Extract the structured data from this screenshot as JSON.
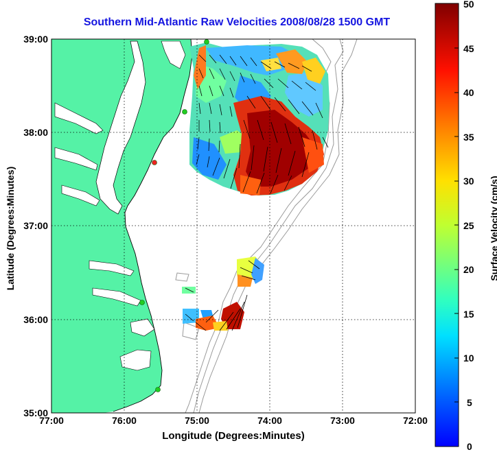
{
  "title": "Southern Mid-Atlantic Raw Velocities 2008/08/28 1500 GMT",
  "xlabel": "Longitude (Degrees:Minutes)",
  "ylabel": "Latitude (Degrees:Minutes)",
  "colorbar": {
    "label": "Surface Velocity (cm/s)",
    "min": 0,
    "max": 50,
    "ticks": [
      "0",
      "5",
      "10",
      "15",
      "20",
      "25",
      "30",
      "35",
      "40",
      "45",
      "50"
    ]
  },
  "x_ticks": [
    "77:00",
    "76:00",
    "75:00",
    "74:00",
    "73:00",
    "72:00"
  ],
  "y_ticks": [
    "39:00",
    "38:00",
    "37:00",
    "36:00",
    "35:00"
  ],
  "colors": {
    "land": "#55f2a6",
    "title": "#1515e0",
    "grid": "#000000",
    "bathymetry": "#999999",
    "station": "#22cc22"
  },
  "map": {
    "lon_range": [
      -77.0,
      -72.0
    ],
    "lat_range": [
      35.0,
      39.0
    ],
    "grid": true
  }
}
